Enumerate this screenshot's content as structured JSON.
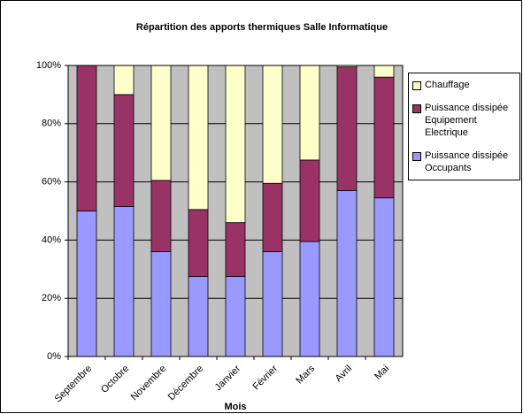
{
  "chart_data": {
    "type": "bar",
    "stacked": true,
    "title": "Répartition des apports thermiques Salle Informatique",
    "x_label": "Mois",
    "categories": [
      "Septembre",
      "Octobre",
      "Novembre",
      "Décembre",
      "Janvier",
      "Février",
      "Mars",
      "Avril",
      "Mai"
    ],
    "series": [
      {
        "name": "Puissance dissipée Occupants",
        "color": "#9999ff",
        "values": [
          50,
          51.5,
          36,
          27.5,
          27.5,
          36,
          39.5,
          57,
          54.5
        ]
      },
      {
        "name": "Puissance dissipée Equipement Electrique",
        "color": "#993366",
        "values": [
          50,
          38.5,
          24.5,
          23,
          18.5,
          23.5,
          28,
          42.5,
          41.5
        ]
      },
      {
        "name": "Chauffage",
        "color": "#ffffcc",
        "values": [
          0,
          10,
          39.5,
          49.5,
          54,
          40.5,
          32.5,
          0.5,
          4
        ]
      }
    ],
    "ylim": [
      0,
      100
    ],
    "yticks": [
      {
        "value": 0,
        "label": "0%"
      },
      {
        "value": 20,
        "label": "20%"
      },
      {
        "value": 40,
        "label": "40%"
      },
      {
        "value": 60,
        "label": "60%"
      },
      {
        "value": 80,
        "label": "80%"
      },
      {
        "value": 100,
        "label": "100%"
      }
    ],
    "grid": true,
    "plot_background": "#c0c0c0",
    "legend": "right"
  }
}
